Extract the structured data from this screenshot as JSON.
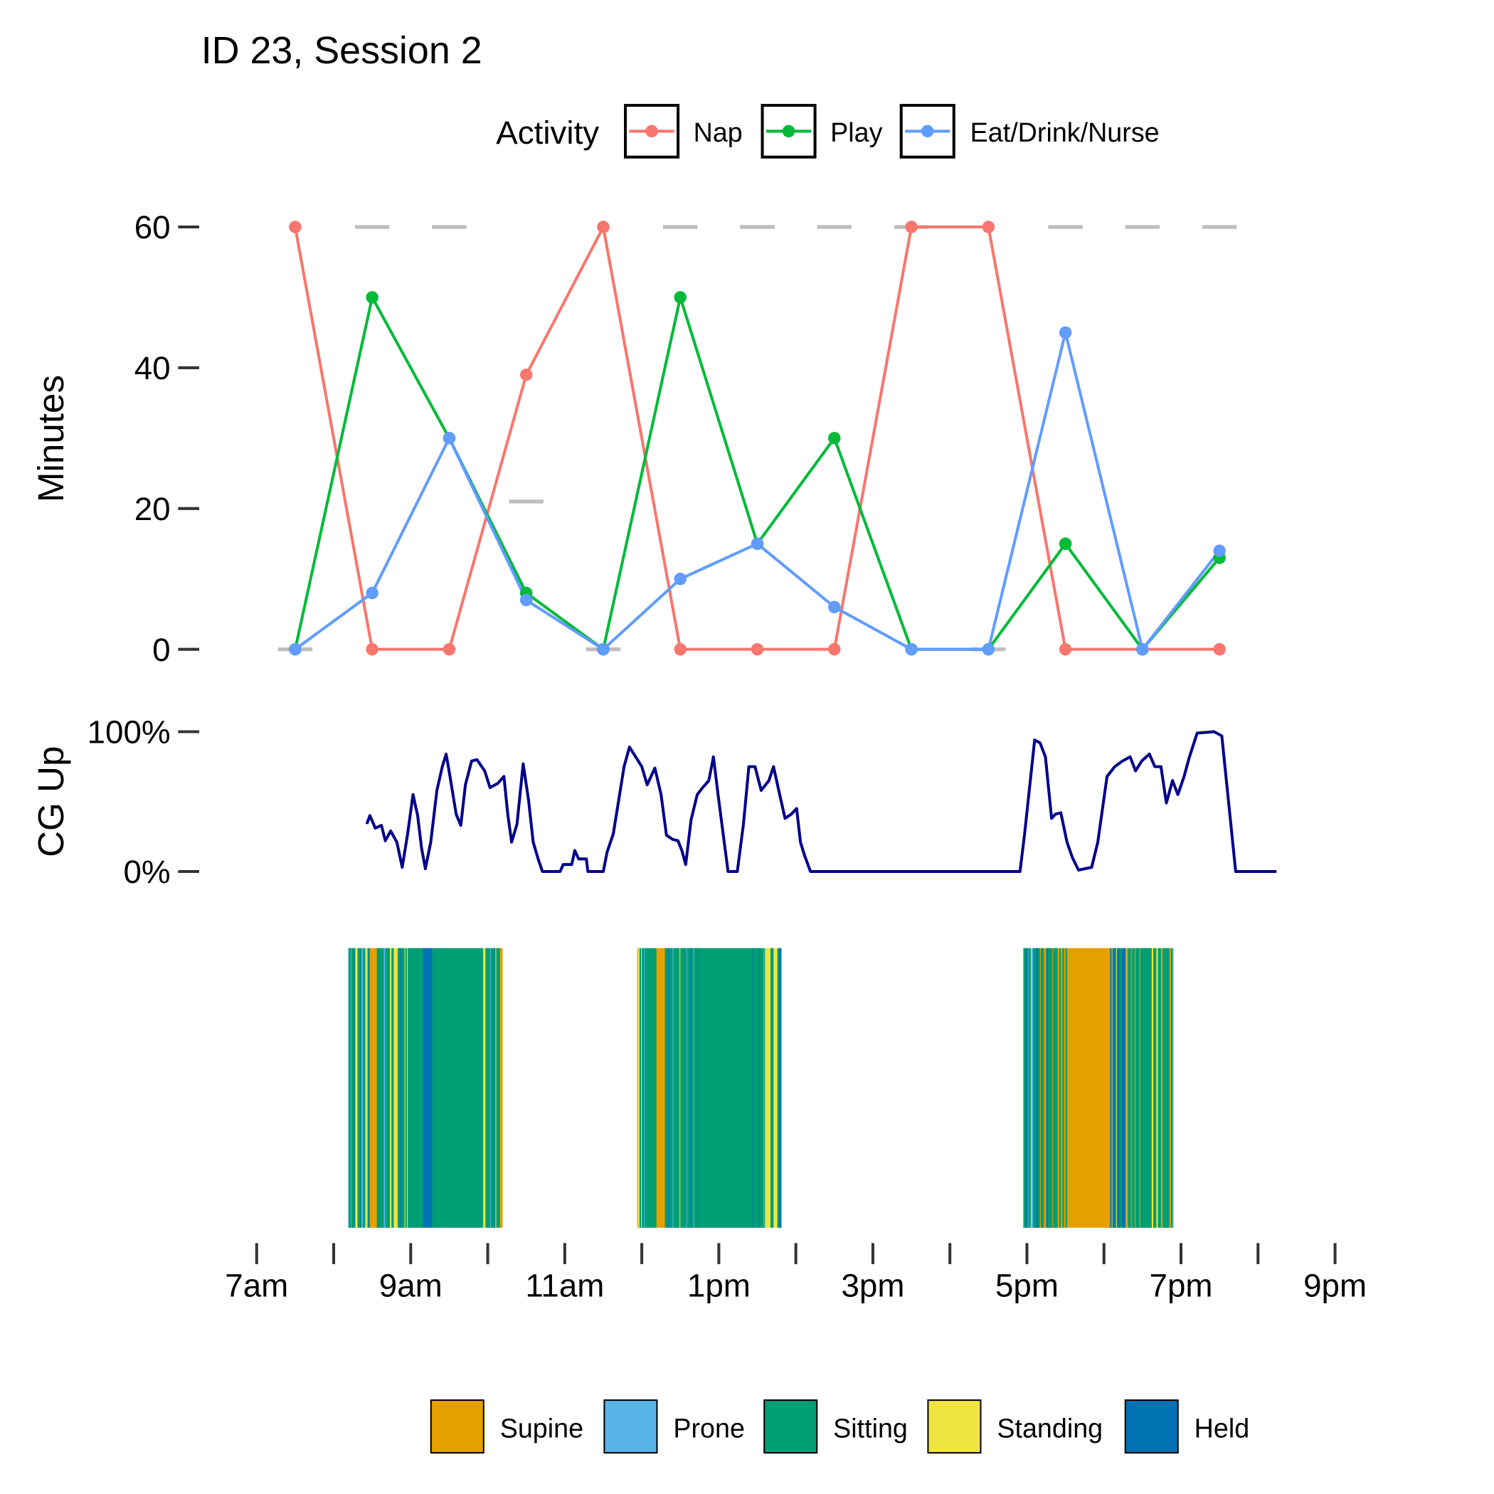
{
  "title": "ID 23, Session 2",
  "colors": {
    "nap": "#F8766D",
    "play": "#00BA38",
    "eat": "#619CFF",
    "reference": "#BEBEBE",
    "cg_line": "#00008B",
    "supine": "#E69F00",
    "prone": "#56B4E9",
    "sitting": "#009E73",
    "standing": "#F0E442",
    "held": "#0072B2"
  },
  "chart_data": [
    {
      "type": "line",
      "panel": "activity",
      "ylabel": "Minutes",
      "ylim": [
        0,
        60
      ],
      "yticks": [
        "0",
        "20",
        "40",
        "60"
      ],
      "legend": {
        "title": "Activity",
        "placement": "top",
        "entries": [
          "Nap",
          "Play",
          "Eat/Drink/Nurse"
        ]
      },
      "x": [
        7.5,
        8.5,
        9.5,
        10.5,
        11.5,
        12.5,
        13.5,
        14.5,
        15.5,
        16.5,
        17.5,
        18.5,
        19.5
      ],
      "series": [
        {
          "name": "Nap",
          "key": "nap",
          "values": [
            60,
            0,
            0,
            39,
            60,
            0,
            0,
            0,
            60,
            60,
            0,
            0,
            0
          ]
        },
        {
          "name": "Play",
          "key": "play",
          "values": [
            0,
            50,
            30,
            8,
            0,
            50,
            15,
            30,
            0,
            0,
            15,
            0,
            13
          ]
        },
        {
          "name": "Eat/Drink/Nurse",
          "key": "eat",
          "values": [
            0,
            8,
            30,
            7,
            0,
            10,
            15,
            6,
            0,
            0,
            45,
            0,
            14
          ]
        }
      ],
      "reference_dashes": [
        0,
        60,
        60,
        21,
        0,
        60,
        60,
        60,
        60,
        0,
        60,
        60,
        60
      ]
    },
    {
      "type": "line",
      "panel": "cg_up",
      "ylabel": "CG Up",
      "ylim": [
        0,
        100
      ],
      "yticks": [
        "0%",
        "100%"
      ],
      "points": [
        [
          8.43,
          34
        ],
        [
          8.47,
          40
        ],
        [
          8.54,
          31
        ],
        [
          8.62,
          33
        ],
        [
          8.67,
          22
        ],
        [
          8.74,
          29
        ],
        [
          8.82,
          21
        ],
        [
          8.89,
          3
        ],
        [
          8.96,
          27
        ],
        [
          9.03,
          55
        ],
        [
          9.09,
          40
        ],
        [
          9.14,
          17
        ],
        [
          9.19,
          2
        ],
        [
          9.26,
          21
        ],
        [
          9.34,
          58
        ],
        [
          9.41,
          75
        ],
        [
          9.46,
          84
        ],
        [
          9.51,
          68
        ],
        [
          9.59,
          41
        ],
        [
          9.65,
          33
        ],
        [
          9.71,
          62
        ],
        [
          9.79,
          79
        ],
        [
          9.86,
          80
        ],
        [
          9.96,
          72
        ],
        [
          10.03,
          60
        ],
        [
          10.13,
          63
        ],
        [
          10.21,
          68
        ],
        [
          10.26,
          41
        ],
        [
          10.31,
          21
        ],
        [
          10.38,
          34
        ],
        [
          10.46,
          77
        ],
        [
          10.53,
          51
        ],
        [
          10.59,
          21
        ],
        [
          10.66,
          8
        ],
        [
          10.71,
          0
        ],
        [
          10.94,
          0
        ],
        [
          10.98,
          5
        ],
        [
          11.09,
          5
        ],
        [
          11.13,
          15
        ],
        [
          11.18,
          9
        ],
        [
          11.28,
          9
        ],
        [
          11.3,
          0
        ],
        [
          11.5,
          0
        ],
        [
          11.55,
          14
        ],
        [
          11.63,
          27
        ],
        [
          11.7,
          51
        ],
        [
          11.77,
          75
        ],
        [
          11.84,
          89
        ],
        [
          11.92,
          82
        ],
        [
          12.0,
          75
        ],
        [
          12.07,
          62
        ],
        [
          12.17,
          74
        ],
        [
          12.25,
          55
        ],
        [
          12.32,
          26
        ],
        [
          12.4,
          23
        ],
        [
          12.47,
          22
        ],
        [
          12.52,
          15
        ],
        [
          12.57,
          5
        ],
        [
          12.64,
          37
        ],
        [
          12.72,
          55
        ],
        [
          12.79,
          60
        ],
        [
          12.87,
          65
        ],
        [
          12.93,
          82
        ],
        [
          12.99,
          55
        ],
        [
          13.07,
          21
        ],
        [
          13.12,
          0
        ],
        [
          13.24,
          0
        ],
        [
          13.32,
          34
        ],
        [
          13.39,
          75
        ],
        [
          13.47,
          75
        ],
        [
          13.55,
          58
        ],
        [
          13.65,
          65
        ],
        [
          13.71,
          75
        ],
        [
          13.79,
          55
        ],
        [
          13.86,
          38
        ],
        [
          13.94,
          41
        ],
        [
          14.01,
          45
        ],
        [
          14.06,
          21
        ],
        [
          14.11,
          12
        ],
        [
          14.19,
          0
        ],
        [
          16.91,
          0
        ],
        [
          16.97,
          27
        ],
        [
          17.1,
          94
        ],
        [
          17.17,
          92
        ],
        [
          17.24,
          82
        ],
        [
          17.32,
          38
        ],
        [
          17.37,
          41
        ],
        [
          17.44,
          42
        ],
        [
          17.52,
          21
        ],
        [
          17.59,
          10
        ],
        [
          17.67,
          1
        ],
        [
          17.84,
          3
        ],
        [
          17.92,
          21
        ],
        [
          18.04,
          68
        ],
        [
          18.14,
          75
        ],
        [
          18.24,
          79
        ],
        [
          18.34,
          82
        ],
        [
          18.41,
          72
        ],
        [
          18.49,
          79
        ],
        [
          18.59,
          84
        ],
        [
          18.66,
          75
        ],
        [
          18.74,
          75
        ],
        [
          18.81,
          49
        ],
        [
          18.89,
          65
        ],
        [
          18.96,
          55
        ],
        [
          19.04,
          68
        ],
        [
          19.11,
          82
        ],
        [
          19.21,
          99
        ],
        [
          19.43,
          100
        ],
        [
          19.53,
          97
        ],
        [
          19.71,
          0
        ],
        [
          20.24,
          0
        ]
      ]
    },
    {
      "type": "heatmap",
      "panel": "posture",
      "legend": {
        "placement": "bottom",
        "entries": [
          {
            "name": "Supine",
            "key": "supine"
          },
          {
            "name": "Prone",
            "key": "prone"
          },
          {
            "name": "Sitting",
            "key": "sitting"
          },
          {
            "name": "Standing",
            "key": "standing"
          },
          {
            "name": "Held",
            "key": "held"
          }
        ]
      },
      "segments": [
        [
          8.19,
          8.22,
          "sitting"
        ],
        [
          8.22,
          8.23,
          "prone"
        ],
        [
          8.23,
          8.27,
          "sitting"
        ],
        [
          8.27,
          8.28,
          "held"
        ],
        [
          8.28,
          8.31,
          "standing"
        ],
        [
          8.31,
          8.35,
          "sitting"
        ],
        [
          8.35,
          8.36,
          "held"
        ],
        [
          8.36,
          8.38,
          "prone"
        ],
        [
          8.38,
          8.41,
          "sitting"
        ],
        [
          8.41,
          8.44,
          "standing"
        ],
        [
          8.44,
          8.45,
          "held"
        ],
        [
          8.45,
          8.47,
          "sitting"
        ],
        [
          8.47,
          8.56,
          "supine"
        ],
        [
          8.56,
          8.65,
          "sitting"
        ],
        [
          8.65,
          8.67,
          "prone"
        ],
        [
          8.67,
          8.73,
          "sitting"
        ],
        [
          8.73,
          8.75,
          "standing"
        ],
        [
          8.75,
          8.78,
          "sitting"
        ],
        [
          8.78,
          8.83,
          "standing"
        ],
        [
          8.83,
          8.86,
          "sitting"
        ],
        [
          8.86,
          8.87,
          "held"
        ],
        [
          8.87,
          8.92,
          "sitting"
        ],
        [
          8.92,
          8.93,
          "standing"
        ],
        [
          8.93,
          8.95,
          "sitting"
        ],
        [
          8.95,
          8.96,
          "standing"
        ],
        [
          8.96,
          9.16,
          "sitting"
        ],
        [
          9.16,
          9.28,
          "held"
        ],
        [
          9.28,
          9.94,
          "sitting"
        ],
        [
          9.94,
          9.97,
          "standing"
        ],
        [
          9.97,
          10.03,
          "sitting"
        ],
        [
          10.03,
          10.04,
          "prone"
        ],
        [
          10.04,
          10.08,
          "sitting"
        ],
        [
          10.08,
          10.09,
          "held"
        ],
        [
          10.09,
          10.1,
          "sitting"
        ],
        [
          10.1,
          10.11,
          "standing"
        ],
        [
          10.11,
          10.16,
          "sitting"
        ],
        [
          10.16,
          10.19,
          "supine"
        ],
        [
          11.94,
          11.95,
          "supine"
        ],
        [
          11.95,
          11.97,
          "standing"
        ],
        [
          11.97,
          11.99,
          "sitting"
        ],
        [
          11.99,
          12.0,
          "standing"
        ],
        [
          12.0,
          12.03,
          "sitting"
        ],
        [
          12.03,
          12.04,
          "prone"
        ],
        [
          12.04,
          12.19,
          "sitting"
        ],
        [
          12.19,
          12.3,
          "supine"
        ],
        [
          12.3,
          12.34,
          "sitting"
        ],
        [
          12.34,
          12.35,
          "held"
        ],
        [
          12.35,
          12.4,
          "sitting"
        ],
        [
          12.4,
          12.41,
          "prone"
        ],
        [
          12.41,
          12.49,
          "sitting"
        ],
        [
          12.49,
          12.5,
          "standing"
        ],
        [
          12.5,
          12.58,
          "sitting"
        ],
        [
          12.58,
          12.59,
          "prone"
        ],
        [
          12.59,
          12.63,
          "sitting"
        ],
        [
          12.63,
          12.64,
          "held"
        ],
        [
          12.64,
          12.67,
          "sitting"
        ],
        [
          12.67,
          12.68,
          "prone"
        ],
        [
          12.68,
          12.72,
          "sitting"
        ],
        [
          12.72,
          12.73,
          "held"
        ],
        [
          12.73,
          13.44,
          "sitting"
        ],
        [
          13.44,
          13.45,
          "held"
        ],
        [
          13.45,
          13.52,
          "sitting"
        ],
        [
          13.52,
          13.53,
          "held"
        ],
        [
          13.53,
          13.58,
          "sitting"
        ],
        [
          13.58,
          13.59,
          "prone"
        ],
        [
          13.59,
          13.6,
          "sitting"
        ],
        [
          13.6,
          13.67,
          "standing"
        ],
        [
          13.67,
          13.71,
          "sitting"
        ],
        [
          13.71,
          13.76,
          "standing"
        ],
        [
          13.76,
          13.78,
          "sitting"
        ],
        [
          13.78,
          13.81,
          "held"
        ],
        [
          16.95,
          16.96,
          "supine"
        ],
        [
          16.96,
          16.99,
          "sitting"
        ],
        [
          16.99,
          17.01,
          "held"
        ],
        [
          17.01,
          17.02,
          "prone"
        ],
        [
          17.02,
          17.05,
          "sitting"
        ],
        [
          17.05,
          17.06,
          "standing"
        ],
        [
          17.06,
          17.08,
          "prone"
        ],
        [
          17.08,
          17.12,
          "sitting"
        ],
        [
          17.12,
          17.14,
          "held"
        ],
        [
          17.14,
          17.17,
          "sitting"
        ],
        [
          17.17,
          17.18,
          "supine"
        ],
        [
          17.18,
          17.22,
          "sitting"
        ],
        [
          17.22,
          17.25,
          "supine"
        ],
        [
          17.25,
          17.27,
          "held"
        ],
        [
          17.27,
          17.33,
          "sitting"
        ],
        [
          17.33,
          17.34,
          "supine"
        ],
        [
          17.34,
          17.4,
          "sitting"
        ],
        [
          17.4,
          17.42,
          "supine"
        ],
        [
          17.42,
          17.44,
          "sitting"
        ],
        [
          17.44,
          17.46,
          "supine"
        ],
        [
          17.46,
          17.48,
          "sitting"
        ],
        [
          17.48,
          17.5,
          "supine"
        ],
        [
          17.5,
          17.52,
          "sitting"
        ],
        [
          17.52,
          18.08,
          "supine"
        ],
        [
          18.08,
          18.1,
          "held"
        ],
        [
          18.1,
          18.11,
          "standing"
        ],
        [
          18.11,
          18.14,
          "held"
        ],
        [
          18.14,
          18.16,
          "sitting"
        ],
        [
          18.16,
          18.17,
          "standing"
        ],
        [
          18.17,
          18.2,
          "held"
        ],
        [
          18.2,
          18.23,
          "sitting"
        ],
        [
          18.23,
          18.28,
          "held"
        ],
        [
          18.28,
          18.31,
          "supine"
        ],
        [
          18.31,
          18.35,
          "sitting"
        ],
        [
          18.35,
          18.36,
          "supine"
        ],
        [
          18.36,
          18.4,
          "sitting"
        ],
        [
          18.4,
          18.41,
          "supine"
        ],
        [
          18.41,
          18.46,
          "sitting"
        ],
        [
          18.46,
          18.47,
          "supine"
        ],
        [
          18.47,
          18.62,
          "sitting"
        ],
        [
          18.62,
          18.64,
          "standing"
        ],
        [
          18.64,
          18.68,
          "sitting"
        ],
        [
          18.68,
          18.7,
          "standing"
        ],
        [
          18.7,
          18.74,
          "sitting"
        ],
        [
          18.74,
          18.76,
          "supine"
        ],
        [
          18.76,
          18.85,
          "sitting"
        ],
        [
          18.85,
          18.87,
          "supine"
        ],
        [
          18.87,
          18.89,
          "sitting"
        ],
        [
          18.89,
          18.9,
          "prone"
        ]
      ]
    }
  ],
  "x_axis": {
    "range": [
      7,
      21
    ],
    "tick_hours": [
      7,
      8,
      9,
      10,
      11,
      12,
      13,
      14,
      15,
      16,
      17,
      18,
      19,
      20,
      21
    ],
    "labels": [
      {
        "hour": 7,
        "text": "7am"
      },
      {
        "hour": 9,
        "text": "9am"
      },
      {
        "hour": 11,
        "text": "11am"
      },
      {
        "hour": 13,
        "text": "1pm"
      },
      {
        "hour": 15,
        "text": "3pm"
      },
      {
        "hour": 17,
        "text": "5pm"
      },
      {
        "hour": 19,
        "text": "7pm"
      },
      {
        "hour": 21,
        "text": "9pm"
      }
    ]
  }
}
